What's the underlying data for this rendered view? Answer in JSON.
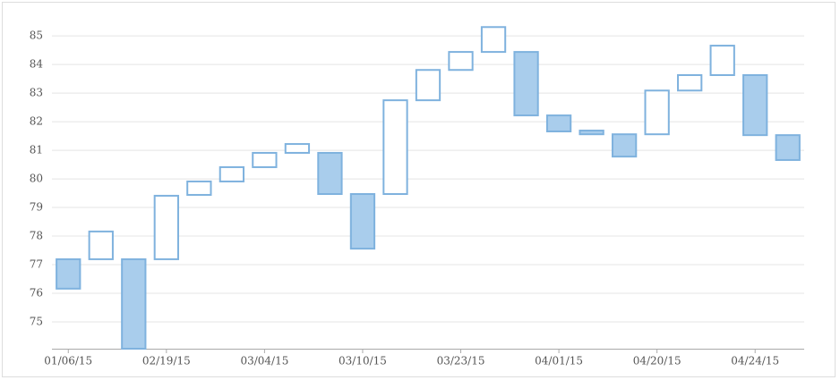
{
  "chart_data": {
    "type": "candlestick",
    "categories": [
      "01/06/15",
      null,
      null,
      "02/19/15",
      null,
      null,
      "03/04/15",
      null,
      null,
      "03/10/15",
      null,
      null,
      "03/23/15",
      null,
      null,
      "04/01/15",
      null,
      null,
      "04/20/15",
      null,
      null,
      "04/24/15",
      null
    ],
    "open": [
      77.19,
      77.19,
      77.19,
      77.19,
      79.44,
      79.91,
      80.41,
      80.91,
      80.91,
      79.47,
      79.47,
      82.75,
      83.81,
      84.44,
      84.44,
      82.22,
      81.69,
      81.56,
      81.56,
      83.09,
      83.63,
      83.63,
      81.53
    ],
    "close": [
      76.16,
      78.16,
      74.06,
      79.41,
      79.91,
      80.41,
      80.91,
      81.22,
      79.47,
      77.56,
      82.75,
      83.81,
      84.44,
      85.31,
      82.22,
      81.66,
      81.56,
      80.78,
      83.09,
      83.63,
      84.66,
      81.53,
      80.66
    ],
    "up_color": "#ffffff",
    "down_color": "#a9cdec",
    "border_color": "#7fb2de",
    "ylim": [
      74.06,
      85.6
    ],
    "yticks": [
      75,
      76,
      77,
      78,
      79,
      80,
      81,
      82,
      83,
      84,
      85
    ],
    "grid": true
  }
}
